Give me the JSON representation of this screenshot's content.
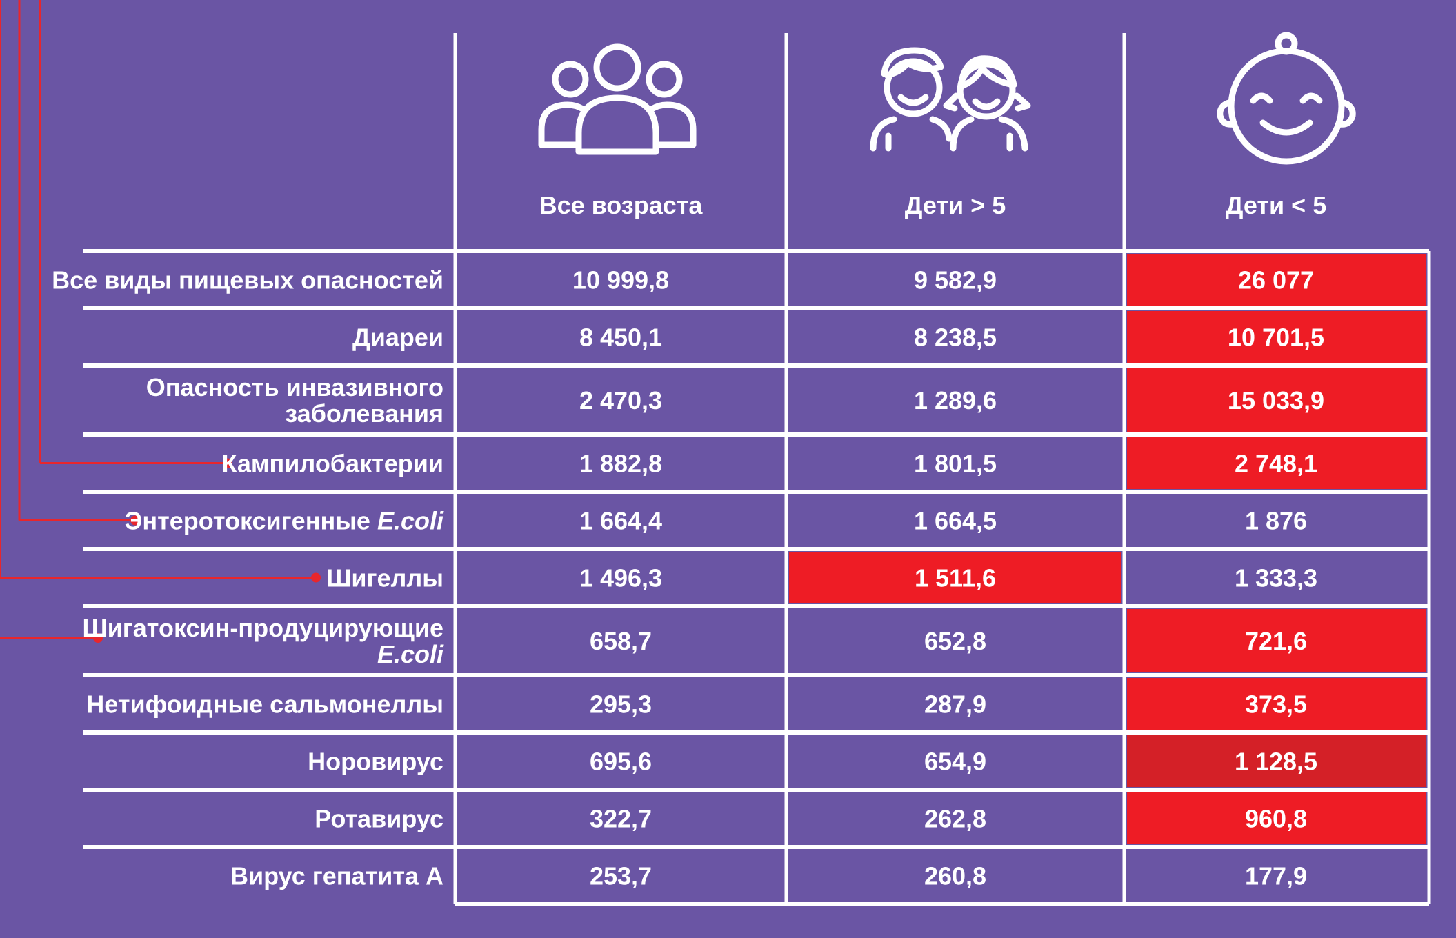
{
  "chart_data": {
    "type": "table",
    "columns": [
      "Все возраста",
      "Дети > 5",
      "Дети < 5"
    ],
    "column_icons": [
      "people-group-icon",
      "children-icon",
      "baby-icon"
    ],
    "rows": [
      {
        "label": "Все виды пищевых опасностей",
        "values": [
          "10 999,8",
          "9 582,9",
          "26 077"
        ],
        "highlight": [
          false,
          false,
          true
        ]
      },
      {
        "label": "Диареи",
        "values": [
          "8 450,1",
          "8 238,5",
          "10 701,5"
        ],
        "highlight": [
          false,
          false,
          true
        ]
      },
      {
        "label_lines": [
          "Опасность инвазивного",
          "заболевания"
        ],
        "values": [
          "2 470,3",
          "1 289,6",
          "15 033,9"
        ],
        "highlight": [
          false,
          false,
          true
        ]
      },
      {
        "label": "Кампилобактерии",
        "values": [
          "1 882,8",
          "1 801,5",
          "2 748,1"
        ],
        "highlight": [
          false,
          false,
          true
        ]
      },
      {
        "label": "Энтеротоксигенные",
        "label_italic": "E.coli",
        "values": [
          "1 664,4",
          "1 664,5",
          "1 876"
        ],
        "highlight": [
          false,
          false,
          false
        ]
      },
      {
        "label": "Шигеллы",
        "values": [
          "1 496,3",
          "1 511,6",
          "1 333,3"
        ],
        "highlight": [
          false,
          true,
          false
        ]
      },
      {
        "label_lines": [
          "Шигатоксин-продуцирующие"
        ],
        "label_italic": "E.coli",
        "values": [
          "658,7",
          "652,8",
          "721,6"
        ],
        "highlight": [
          false,
          false,
          true
        ]
      },
      {
        "label": "Нетифоидные сальмонеллы",
        "values": [
          "295,3",
          "287,9",
          "373,5"
        ],
        "highlight": [
          false,
          false,
          true
        ]
      },
      {
        "label": "Норовирус",
        "values": [
          "695,6",
          "654,9",
          "1 128,5"
        ],
        "highlight": [
          false,
          false,
          true
        ]
      },
      {
        "label": "Ротавирус",
        "values": [
          "322,7",
          "262,8",
          "960,8"
        ],
        "highlight": [
          false,
          false,
          true
        ]
      },
      {
        "label": "Вирус гепатита А",
        "values": [
          "253,7",
          "260,8",
          "177,9"
        ],
        "highlight": [
          false,
          false,
          false
        ]
      }
    ],
    "connector_rows": [
      3,
      4,
      5,
      6
    ]
  },
  "colors": {
    "background": "#6a55a4",
    "highlight": "#ee1c25",
    "highlight_dark": "#d42027",
    "lines": "#ffffff",
    "connector": "#e8262c"
  }
}
